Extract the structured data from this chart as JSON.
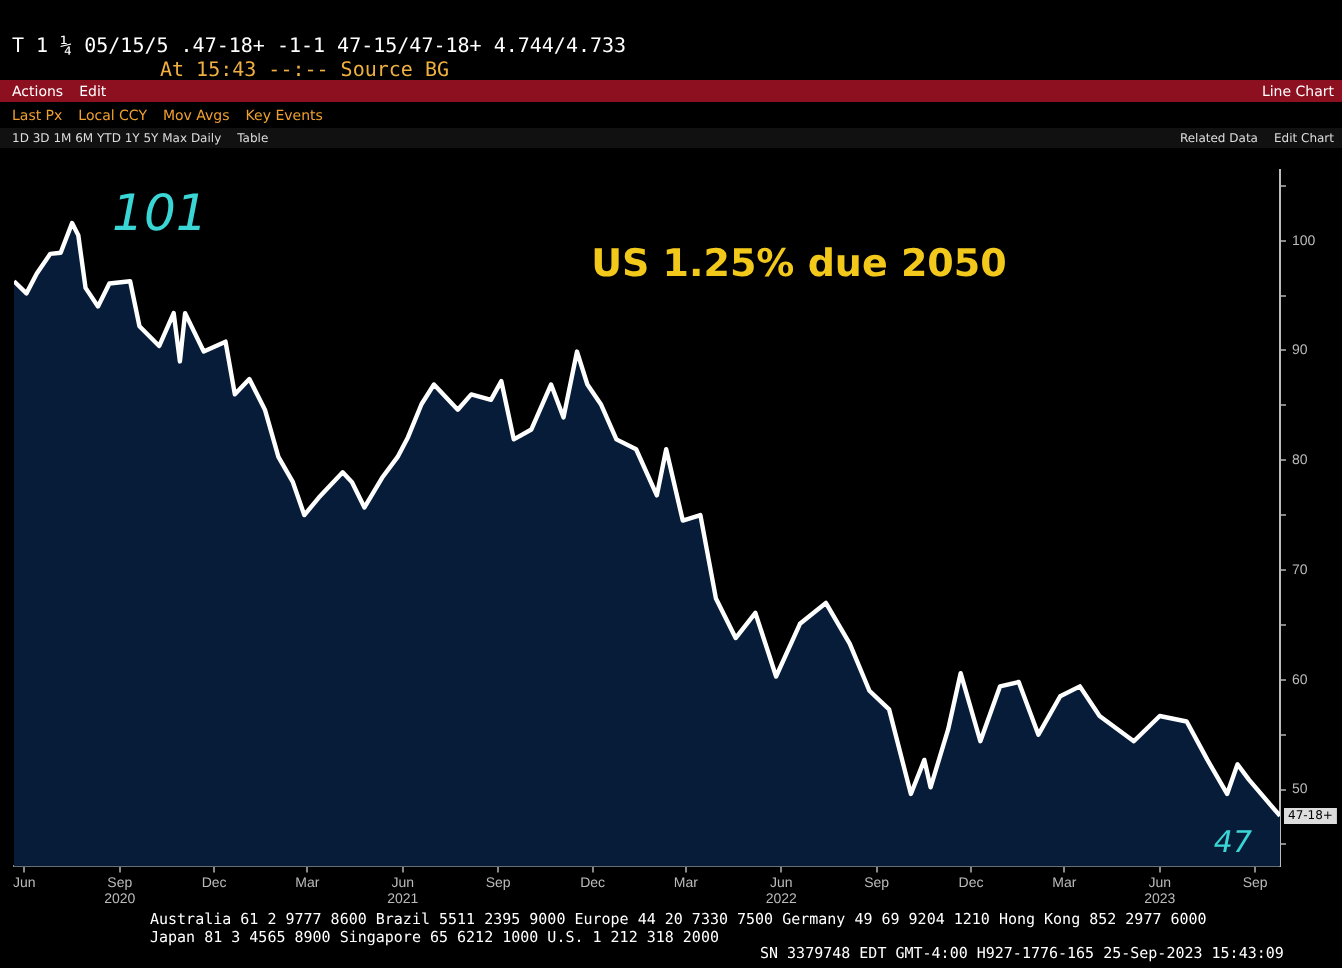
{
  "chart_data": {
    "type": "area",
    "title": "US 1.25% due 2050",
    "subtitle": "T 1 ¼ 05/15/5 .47-18+ -1-1 47-15/47-18+ 4.744/4.733",
    "x": [
      "2020-05-22",
      "2020-06-03",
      "2020-06-13",
      "2020-06-26",
      "2020-07-06",
      "2020-07-17",
      "2020-07-23",
      "2020-07-30",
      "2020-08-11",
      "2020-08-22",
      "2020-09-11",
      "2020-09-20",
      "2020-10-09",
      "2020-10-23",
      "2020-10-29",
      "2020-11-03",
      "2020-11-21",
      "2020-12-12",
      "2020-12-21",
      "2021-01-04",
      "2021-01-19",
      "2021-02-01",
      "2021-02-15",
      "2021-02-26",
      "2021-03-12",
      "2021-04-04",
      "2021-04-13",
      "2021-04-25",
      "2021-05-12",
      "2021-05-27",
      "2021-06-06",
      "2021-06-19",
      "2021-07-01",
      "2021-07-24",
      "2021-08-06",
      "2021-08-25",
      "2021-09-04",
      "2021-09-16",
      "2021-10-03",
      "2021-10-22",
      "2021-11-03",
      "2021-11-16",
      "2021-11-26",
      "2021-12-09",
      "2021-12-24",
      "2022-01-12",
      "2022-02-01",
      "2022-02-10",
      "2022-02-26",
      "2022-03-15",
      "2022-03-30",
      "2022-04-18",
      "2022-05-07",
      "2022-05-27",
      "2022-06-19",
      "2022-07-14",
      "2022-08-06",
      "2022-08-25",
      "2022-09-13",
      "2022-10-04",
      "2022-10-17",
      "2022-10-23",
      "2022-11-09",
      "2022-11-21",
      "2022-12-10",
      "2022-12-29",
      "2023-01-16",
      "2023-02-04",
      "2023-02-25",
      "2023-03-16",
      "2023-04-04",
      "2023-05-07",
      "2023-06-01",
      "2023-06-27",
      "2023-07-17",
      "2023-08-05",
      "2023-08-15",
      "2023-08-26",
      "2023-09-25"
    ],
    "series": [
      {
        "color": "#ffffff",
        "values": [
          96.3,
          95.2,
          97.0,
          98.8,
          98.9,
          101.6,
          100.5,
          95.7,
          94.0,
          96.1,
          96.3,
          92.2,
          90.4,
          93.4,
          89.0,
          93.4,
          89.9,
          90.8,
          86.0,
          87.4,
          84.6,
          80.3,
          78.0,
          75.0,
          76.6,
          78.9,
          78.0,
          75.7,
          78.4,
          80.3,
          82.1,
          85.1,
          86.9,
          84.6,
          86.0,
          85.5,
          87.2,
          81.9,
          82.8,
          86.9,
          83.9,
          89.9,
          86.9,
          85.1,
          81.9,
          81.0,
          76.8,
          81.0,
          74.5,
          75.0,
          67.4,
          63.8,
          66.1,
          60.3,
          65.1,
          67.0,
          63.3,
          59.0,
          57.3,
          49.6,
          52.7,
          50.2,
          55.5,
          60.6,
          54.4,
          59.4,
          59.8,
          55.0,
          58.5,
          59.4,
          56.7,
          54.4,
          56.7,
          56.2,
          52.7,
          49.6,
          52.3,
          50.9,
          47.6
        ]
      }
    ],
    "xlim": [
      "2020-05-22",
      "2023-09-25"
    ],
    "xticks": [
      {
        "value": "2020-06-01",
        "label": "Jun"
      },
      {
        "value": "2020-09-01",
        "label": "Sep\n2020"
      },
      {
        "value": "2020-12-01",
        "label": "Dec"
      },
      {
        "value": "2021-03-01",
        "label": "Mar"
      },
      {
        "value": "2021-06-01",
        "label": "Jun\n2021"
      },
      {
        "value": "2021-09-01",
        "label": "Sep"
      },
      {
        "value": "2021-12-01",
        "label": "Dec"
      },
      {
        "value": "2022-03-01",
        "label": "Mar"
      },
      {
        "value": "2022-06-01",
        "label": "Jun\n2022"
      },
      {
        "value": "2022-09-01",
        "label": "Sep"
      },
      {
        "value": "2022-12-01",
        "label": "Dec"
      },
      {
        "value": "2023-03-01",
        "label": "Mar"
      },
      {
        "value": "2023-06-01",
        "label": "Jun\n2023"
      },
      {
        "value": "2023-09-01",
        "label": "Sep"
      }
    ],
    "ylim": [
      43,
      106.4
    ],
    "yticks": [
      {
        "value": 45,
        "label": null
      },
      50,
      {
        "value": 55,
        "label": null
      },
      60,
      {
        "value": 65,
        "label": null
      },
      70,
      {
        "value": 75,
        "label": null
      },
      80,
      {
        "value": 85,
        "label": null
      },
      90,
      {
        "value": 95,
        "label": null
      },
      100,
      {
        "value": 105,
        "label": null
      }
    ],
    "grid": false,
    "legend": false,
    "marker": "none",
    "line_style": "solid",
    "annotations": [
      "At 15:43   --:--   Source BG",
      "Actions",
      "Edit",
      "Line Chart",
      "Last Px",
      "Local CCY",
      "Mov Avgs",
      "Key Events",
      "1D 3D 1M 6M YTD 1Y 5Y Max Daily",
      "Table",
      "Related Data",
      "Edit Chart",
      "Australia 61 2 9777 8600 Brazil 5511 2395 9000 Europe 44 20 7330 7500 Germany 49 69 9204 1210 Hong Kong 852 2977 6000",
      "Japan 81 3 4565 8900   Singapore 65 6212 1000   U.S. 1 212 318 2000",
      "SN 3379748 EDT  GMT-4:00 H927-1776-165 25-Sep-2023 15:43:09",
      {
        "text": "101",
        "x": "2020-07-17",
        "y": 101.6
      },
      {
        "text": "47",
        "x": "2023-09-25",
        "y": 47.6
      },
      {
        "text": "47-18+",
        "y": 47.6
      }
    ]
  }
}
